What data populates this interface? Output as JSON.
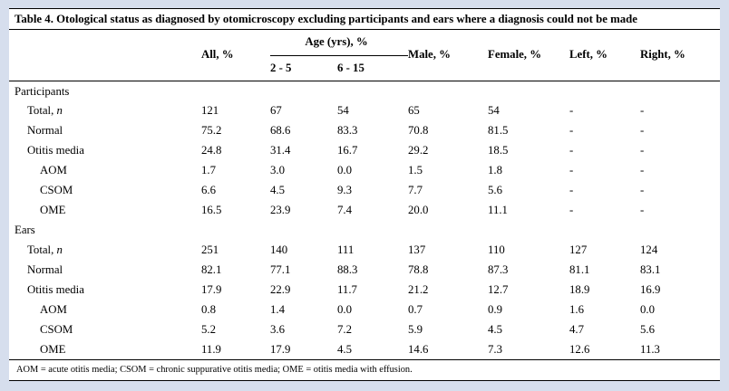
{
  "page": {
    "background_color": "#d6deed",
    "table_background_color": "#ffffff"
  },
  "table": {
    "title": "Table 4. Otological status as diagnosed by otomicroscopy excluding participants and ears where a diagnosis could not be made",
    "age_group_header": "Age (yrs), %",
    "columns": [
      "",
      "All, %",
      "2 - 5",
      "6 - 15",
      "Male, %",
      "Female, %",
      "Left, %",
      "Right, %"
    ],
    "sections": [
      {
        "label": "Participants",
        "rows": [
          {
            "label": "Total, ",
            "label_italic": "n",
            "indent": 1,
            "values": [
              "121",
              "67",
              "54",
              "65",
              "54",
              "-",
              "-"
            ]
          },
          {
            "label": "Normal",
            "indent": 1,
            "values": [
              "75.2",
              "68.6",
              "83.3",
              "70.8",
              "81.5",
              "-",
              "-"
            ]
          },
          {
            "label": "Otitis media",
            "indent": 1,
            "values": [
              "24.8",
              "31.4",
              "16.7",
              "29.2",
              "18.5",
              "-",
              "-"
            ]
          },
          {
            "label": "AOM",
            "indent": 2,
            "values": [
              "1.7",
              "3.0",
              "0.0",
              "1.5",
              "1.8",
              "-",
              "-"
            ]
          },
          {
            "label": "CSOM",
            "indent": 2,
            "values": [
              "6.6",
              "4.5",
              "9.3",
              "7.7",
              "5.6",
              "-",
              "-"
            ]
          },
          {
            "label": "OME",
            "indent": 2,
            "values": [
              "16.5",
              "23.9",
              "7.4",
              "20.0",
              "11.1",
              "-",
              "-"
            ]
          }
        ]
      },
      {
        "label": "Ears",
        "rows": [
          {
            "label": "Total, ",
            "label_italic": "n",
            "indent": 1,
            "values": [
              "251",
              "140",
              "111",
              "137",
              "110",
              "127",
              "124"
            ]
          },
          {
            "label": "Normal",
            "indent": 1,
            "values": [
              "82.1",
              "77.1",
              "88.3",
              "78.8",
              "87.3",
              "81.1",
              "83.1"
            ]
          },
          {
            "label": "Otitis media",
            "indent": 1,
            "values": [
              "17.9",
              "22.9",
              "11.7",
              "21.2",
              "12.7",
              "18.9",
              "16.9"
            ]
          },
          {
            "label": "AOM",
            "indent": 2,
            "values": [
              "0.8",
              "1.4",
              "0.0",
              "0.7",
              "0.9",
              "1.6",
              "0.0"
            ]
          },
          {
            "label": "CSOM",
            "indent": 2,
            "values": [
              "5.2",
              "3.6",
              "7.2",
              "5.9",
              "4.5",
              "4.7",
              "5.6"
            ]
          },
          {
            "label": "OME",
            "indent": 2,
            "values": [
              "11.9",
              "17.9",
              "4.5",
              "14.6",
              "7.3",
              "12.6",
              "11.3"
            ]
          }
        ]
      }
    ],
    "footnote": "AOM = acute otitis media; CSOM = chronic suppurative otitis media; OME = otitis media with effusion."
  }
}
